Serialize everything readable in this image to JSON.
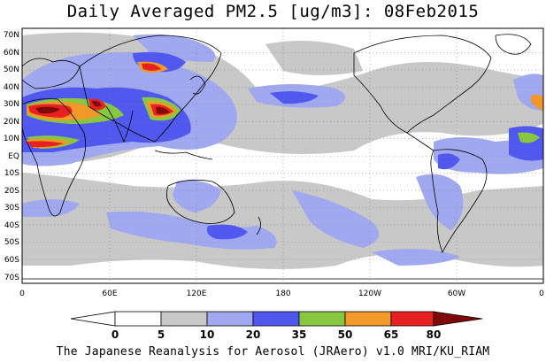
{
  "title": "Daily Averaged PM2.5 [ug/m3]: 08Feb2015",
  "footer": "The Japanese Reanalysis for Aerosol (JRAero) v1.0 MRI/KU_RIAM",
  "lat_labels": [
    "70N",
    "60N",
    "50N",
    "40N",
    "30N",
    "20N",
    "10N",
    "EQ",
    "10S",
    "20S",
    "30S",
    "40S",
    "50S",
    "60S",
    "70S"
  ],
  "lon_labels": [
    "0",
    "60E",
    "120E",
    "180",
    "120W",
    "60W",
    "0"
  ],
  "colorbar": {
    "ticks": [
      "0",
      "5",
      "10",
      "20",
      "35",
      "50",
      "65",
      "80"
    ],
    "colors": [
      "#ffffff",
      "#c8c8c8",
      "#a0a8f0",
      "#5058f0",
      "#88c840",
      "#f09828",
      "#e82020",
      "#800808"
    ]
  }
}
